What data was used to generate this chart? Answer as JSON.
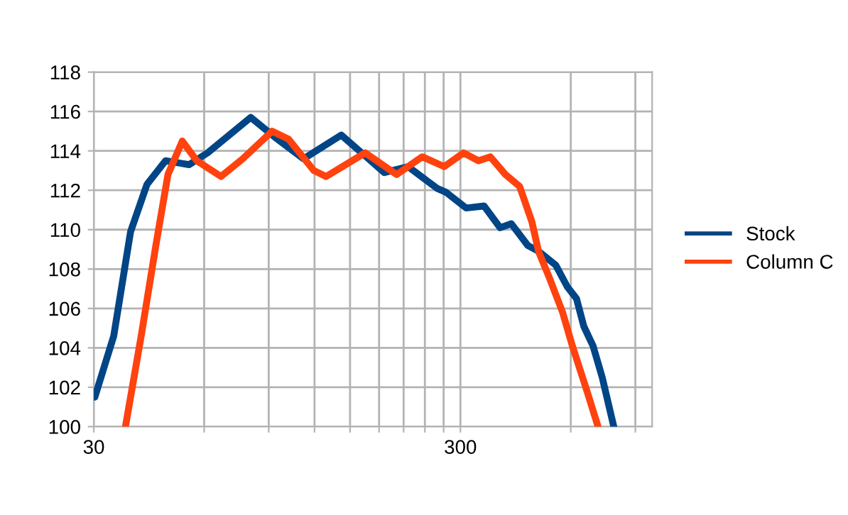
{
  "chart_data": {
    "type": "line",
    "log": "x",
    "xlim": [
      30,
      1000
    ],
    "ylim": [
      100,
      118
    ],
    "xticks": [
      30,
      {
        "value": 60,
        "label": null
      },
      {
        "value": 90,
        "label": null
      },
      {
        "value": 120,
        "label": null
      },
      {
        "value": 150,
        "label": null
      },
      {
        "value": 180,
        "label": null
      },
      {
        "value": 210,
        "label": null
      },
      {
        "value": 240,
        "label": null
      },
      {
        "value": 270,
        "label": null
      },
      300,
      {
        "value": 600,
        "label": null
      },
      {
        "value": 900,
        "label": null
      }
    ],
    "yticks": [
      100,
      102,
      104,
      106,
      108,
      110,
      112,
      114,
      116,
      118
    ],
    "grid": true,
    "legend": "right",
    "marker": "none",
    "line_style": "solid",
    "series": [
      {
        "name": "Stock",
        "color": "#004586",
        "x": [
          30.2,
          34,
          37.8,
          41.9,
          47.1,
          54.6,
          61.3,
          80.4,
          93.5,
          112,
          142,
          186,
          216,
          259,
          274,
          311,
          348,
          385,
          413,
          458,
          490,
          546,
          587,
          622,
          651,
          690,
          731,
          786
        ],
        "values": [
          101.5,
          104.6,
          109.9,
          112.3,
          113.5,
          113.3,
          113.9,
          115.7,
          114.7,
          113.6,
          114.8,
          112.9,
          113.2,
          112.1,
          111.9,
          111.1,
          111.2,
          110.1,
          110.3,
          109.2,
          108.9,
          108.2,
          107.1,
          106.5,
          105.1,
          104.1,
          102.5,
          100
        ]
      },
      {
        "name": "Column C",
        "color": "#ff420e",
        "x": [
          36.6,
          40.4,
          44.3,
          47.8,
          52.3,
          57.3,
          66.7,
          76.5,
          91.9,
          101.9,
          119.5,
          129,
          165,
          201,
          236,
          271,
          306,
          336,
          362,
          398,
          435,
          470,
          490,
          526,
          570,
          606,
          667,
          712
        ],
        "values": [
          100,
          104.6,
          109.2,
          112.8,
          114.5,
          113.5,
          112.7,
          113.6,
          115.0,
          114.6,
          113.0,
          112.7,
          113.9,
          112.8,
          113.7,
          113.2,
          113.9,
          113.5,
          113.7,
          112.8,
          112.2,
          110.4,
          108.9,
          107.5,
          105.8,
          104.1,
          101.7,
          100
        ]
      }
    ]
  }
}
